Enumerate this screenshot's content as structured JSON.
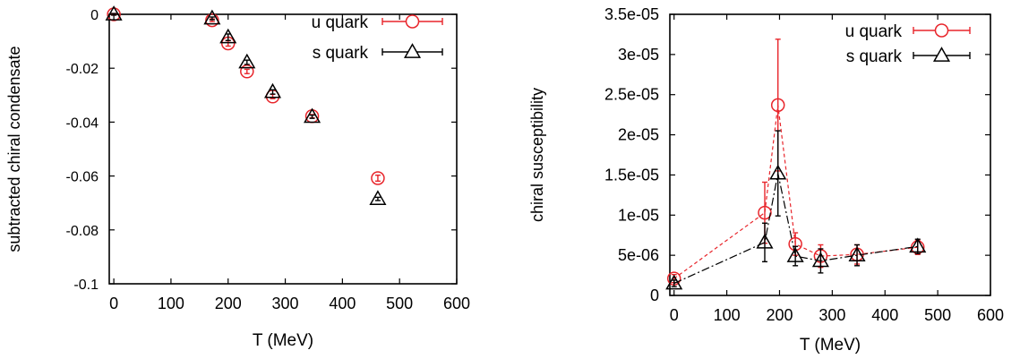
{
  "chart_data": [
    {
      "type": "scatter",
      "title": "",
      "xlabel": "T (MeV)",
      "ylabel": "subtracted chiral condensate",
      "xlim": [
        -8,
        600
      ],
      "ylim": [
        -0.1,
        0
      ],
      "xticks": [
        0,
        100,
        200,
        300,
        400,
        500,
        600
      ],
      "xtick_labels": [
        "0",
        "100",
        "200",
        "300",
        "400",
        "500",
        "600"
      ],
      "yticks": [
        0,
        -0.02,
        -0.04,
        -0.06,
        -0.08,
        -0.1
      ],
      "ytick_labels": [
        "0",
        "-0.02",
        "-0.04",
        "-0.06",
        "-0.08",
        "-0.1"
      ],
      "grid": false,
      "legend_position": "top-right",
      "series": [
        {
          "name": "u quark",
          "marker": "circle",
          "color": "#e8252b",
          "connected": false,
          "x": [
            0,
            172,
            200,
            233,
            278,
            347,
            462
          ],
          "y": [
            0,
            -0.0022,
            -0.0108,
            -0.0212,
            -0.0305,
            -0.0378,
            -0.0608
          ],
          "err": [
            0.0003,
            0.0005,
            0.001,
            0.0008,
            0.0008,
            0.0006,
            0.0011
          ]
        },
        {
          "name": "s quark",
          "marker": "triangle",
          "color": "#000000",
          "connected": false,
          "x": [
            0,
            172,
            200,
            233,
            278,
            347,
            462
          ],
          "y": [
            0,
            -0.0015,
            -0.0085,
            -0.0178,
            -0.0288,
            -0.038,
            -0.0685
          ],
          "err": [
            0.0003,
            0.0005,
            0.0012,
            0.0008,
            0.0008,
            0.0006,
            0.0006
          ]
        }
      ]
    },
    {
      "type": "line",
      "title": "",
      "xlabel": "T (MeV)",
      "ylabel": "chiral susceptibility",
      "xlim": [
        -8,
        600
      ],
      "ylim": [
        0,
        3.5e-05
      ],
      "xticks": [
        0,
        100,
        200,
        300,
        400,
        500,
        600
      ],
      "xtick_labels": [
        "0",
        "100",
        "200",
        "300",
        "400",
        "500",
        "600"
      ],
      "yticks": [
        0,
        5e-06,
        1e-05,
        1.5e-05,
        2e-05,
        2.5e-05,
        3e-05,
        3.5e-05
      ],
      "ytick_labels": [
        "0",
        "5e-06",
        "1e-05",
        "1.5e-05",
        "2e-05",
        "2.5e-05",
        "3e-05",
        "3.5e-05"
      ],
      "grid": false,
      "legend_position": "top-right",
      "series": [
        {
          "name": "u quark",
          "marker": "circle",
          "color": "#e8252b",
          "connected": true,
          "dash": "4,3",
          "x": [
            0,
            172,
            197,
            230,
            278,
            347,
            462
          ],
          "y": [
            2.1e-06,
            1.03e-05,
            2.37e-05,
            6.4e-06,
            4.9e-06,
            5.1e-06,
            6e-06
          ],
          "err": [
            5e-07,
            3.8e-06,
            8.2e-06,
            1.4e-06,
            1.4e-06,
            1.2e-06,
            9e-07
          ]
        },
        {
          "name": "s quark",
          "marker": "triangle",
          "color": "#000000",
          "connected": true,
          "dash": "9,3,2,3",
          "x": [
            0,
            172,
            197,
            230,
            278,
            347,
            462
          ],
          "y": [
            1.5e-06,
            6.6e-06,
            1.52e-05,
            4.9e-06,
            4.3e-06,
            5e-06,
            6.1e-06
          ],
          "err": [
            4e-07,
            2.4e-06,
            5.3e-06,
            1.2e-06,
            1.5e-06,
            1.3e-06,
            9e-07
          ]
        }
      ]
    }
  ]
}
